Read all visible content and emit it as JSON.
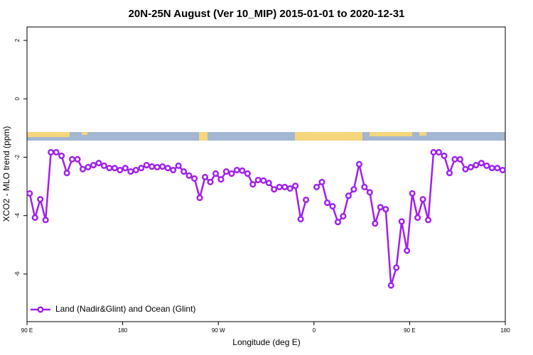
{
  "chart_data": {
    "type": "line",
    "title": "20N-25N August (Ver 10_MIP)   2015-01-01 to 2020-12-31",
    "x_label": "Longitude (deg E)",
    "y_label": "XCO2 - MLO trend (ppm)",
    "x": [
      92.5,
      97.5,
      102.5,
      107.5,
      112.5,
      117.5,
      122.5,
      127.5,
      132.5,
      137.5,
      142.5,
      147.5,
      152.5,
      157.5,
      162.5,
      167.5,
      172.5,
      177.5,
      182.5,
      187.5,
      192.5,
      197.5,
      202.5,
      207.5,
      212.5,
      217.5,
      222.5,
      227.5,
      232.5,
      237.5,
      242.5,
      247.5,
      252.5,
      257.5,
      262.5,
      267.5,
      272.5,
      277.5,
      282.5,
      287.5,
      292.5,
      297.5,
      302.5,
      307.5,
      312.5,
      317.5,
      322.5,
      327.5,
      332.5,
      337.5,
      342.5,
      347.5,
      352.5,
      357.5,
      362.5,
      367.5,
      372.5,
      377.5,
      382.5,
      387.5,
      392.5,
      397.5,
      402.5,
      407.5,
      412.5,
      417.5,
      422.5,
      427.5,
      432.5,
      437.5,
      442.5,
      447.5,
      452.5,
      457.5,
      462.5,
      467.5,
      472.5,
      477.5,
      482.5,
      487.5,
      492.5,
      497.5,
      502.5,
      507.5,
      512.5,
      517.5,
      522.5,
      527.5,
      532.5,
      537.5
    ],
    "series": [
      {
        "name": "Land (Nadir&Glint) and Ocean (Glint)",
        "color": "#a020f0",
        "values": [
          -3.24,
          -4.07,
          -3.44,
          -4.15,
          -1.83,
          -1.83,
          -1.95,
          -2.54,
          -2.07,
          -2.07,
          -2.41,
          -2.34,
          -2.27,
          -2.2,
          -2.29,
          -2.37,
          -2.37,
          -2.44,
          -2.37,
          -2.49,
          -2.44,
          -2.37,
          -2.27,
          -2.32,
          -2.34,
          -2.32,
          -2.37,
          -2.44,
          -2.29,
          -2.49,
          -2.63,
          -2.73,
          -3.39,
          -2.68,
          -2.85,
          -2.56,
          -2.76,
          -2.49,
          -2.56,
          -2.44,
          -2.46,
          -2.56,
          -2.93,
          -2.78,
          -2.8,
          -2.88,
          -3.1,
          -3.02,
          -3.02,
          -3.07,
          -2.98,
          -4.12,
          -3.46,
          null,
          -3.02,
          -2.85,
          -3.56,
          -3.68,
          -4.22,
          -4.02,
          -3.32,
          -3.1,
          -2.24,
          -3.02,
          -3.2,
          -4.27,
          -3.71,
          -3.78,
          -6.39,
          -5.78,
          -4.2,
          -5.2,
          -3.24,
          -4.07,
          -3.44,
          -4.15,
          -1.83,
          -1.83,
          -1.95,
          -2.54,
          -2.07,
          -2.07,
          -2.41,
          -2.34,
          -2.27,
          -2.2,
          -2.29,
          -2.37,
          -2.37,
          -2.44
        ]
      }
    ],
    "xlim": [
      90,
      540
    ],
    "xticks": [
      {
        "value": 90,
        "label": "90 E"
      },
      180,
      {
        "value": 270,
        "label": "90 W"
      },
      {
        "value": 360,
        "label": "0"
      },
      {
        "value": 450,
        "label": "90 E"
      },
      {
        "value": 540,
        "label": "180"
      }
    ],
    "ylim": [
      -7.63,
      2.46
    ],
    "yticks": [
      -6,
      -4,
      -2,
      0,
      2
    ],
    "legend": "bottom-left",
    "grid": false
  }
}
